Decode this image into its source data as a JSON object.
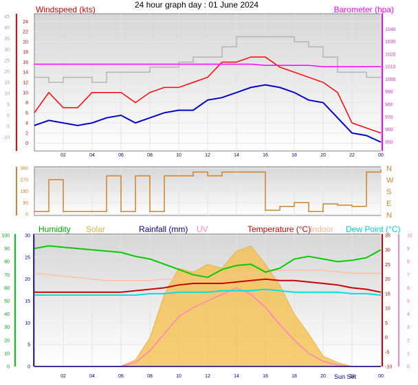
{
  "title": "24 hour graph day : 01 June 2024",
  "x_ticks": [
    "02",
    "04",
    "06",
    "08",
    "10",
    "12",
    "14",
    "16",
    "18",
    "20",
    "22",
    "00"
  ],
  "sun_label": "Sun Set",
  "colors": {
    "wind_avg": "#0000cc",
    "wind_gust": "#ff0000",
    "baro": "#ff00ff",
    "gust_max": "#b4b4b4",
    "direction": "#d2822a",
    "humidity": "#00cc00",
    "solar": "#f5c050",
    "rain": "#000080",
    "uv": "#ff80c0",
    "temperature": "#cc0000",
    "indoor": "#ffc0a0",
    "dewpoint": "#00e0e0",
    "axis_left": "#a0a0a0"
  },
  "chart_data": [
    {
      "type": "line",
      "title": "",
      "labels": {
        "left": "Windspeed (kts)",
        "right": "Barometer (hpa)"
      },
      "ylim_outer": [
        -15,
        45
      ],
      "yticks_outer": [
        45,
        40,
        35,
        30,
        25,
        20,
        15,
        10,
        5,
        0,
        -5,
        -10
      ],
      "ylim_wind": [
        -1,
        25
      ],
      "yticks_wind": [
        24,
        22,
        20,
        18,
        16,
        14,
        12,
        10,
        8,
        6,
        4,
        2,
        0
      ],
      "ylim_baro": [
        945,
        1050
      ],
      "yticks_baro": [
        1040,
        1030,
        1020,
        1010,
        1000,
        990,
        980,
        970,
        960,
        950
      ],
      "x": [
        0,
        1,
        2,
        3,
        4,
        5,
        6,
        7,
        8,
        9,
        10,
        11,
        12,
        13,
        14,
        15,
        16,
        17,
        18,
        19,
        20,
        21,
        22,
        23,
        24
      ],
      "series": [
        {
          "key": "wind_avg",
          "values": [
            3.5,
            4.5,
            4,
            3.5,
            4,
            5,
            5.5,
            4,
            5,
            6,
            6.5,
            6.5,
            8.5,
            9,
            10,
            11,
            11.5,
            11,
            10,
            8.5,
            8,
            5,
            2,
            1.5,
            0.2
          ]
        },
        {
          "key": "wind_gust",
          "values": [
            6,
            10,
            7,
            7,
            10,
            10,
            10,
            8,
            10,
            11,
            11,
            12,
            13,
            16,
            16,
            17,
            17,
            15,
            14,
            13,
            12,
            10,
            4,
            3,
            2
          ]
        },
        {
          "key": "gust_max",
          "values": [
            13,
            12,
            13,
            13,
            12,
            14,
            14,
            14,
            15,
            15,
            16,
            17,
            17,
            19,
            21,
            21,
            21,
            21,
            20,
            19,
            17,
            14,
            14,
            13,
            13
          ]
        },
        {
          "key": "baro",
          "values": [
            1012,
            1012,
            1012,
            1012,
            1012,
            1012,
            1012,
            1012,
            1012,
            1012,
            1012,
            1012,
            1012,
            1012,
            1012,
            1012,
            1011,
            1011,
            1011,
            1011,
            1010,
            1010,
            1010,
            1010,
            1010
          ]
        }
      ]
    },
    {
      "type": "line",
      "title": "",
      "labels": {
        "right": [
          "N",
          "W",
          "S",
          "E",
          "N"
        ]
      },
      "ylim": [
        0,
        360
      ],
      "yticks": [
        360,
        270,
        180,
        90,
        0
      ],
      "x": [
        0,
        1,
        2,
        3,
        4,
        5,
        6,
        7,
        8,
        9,
        10,
        11,
        12,
        13,
        14,
        15,
        16,
        17,
        18,
        19,
        20,
        21,
        22,
        23,
        24
      ],
      "series": [
        {
          "key": "direction",
          "values": [
            20,
            270,
            20,
            20,
            20,
            300,
            20,
            300,
            20,
            300,
            300,
            330,
            300,
            330,
            330,
            330,
            30,
            60,
            90,
            20,
            80,
            70,
            60,
            330,
            350
          ]
        }
      ]
    },
    {
      "type": "area",
      "title": "",
      "labels": {
        "humidity": "Humidity",
        "solar": "Solar",
        "rain": "Rainfall (mm)",
        "uv": "UV",
        "temperature": "Temperature (°C)",
        "indoor": "Indoor",
        "dewpoint": "Dew Point (°C)"
      },
      "ylim_humidity": [
        0,
        100
      ],
      "yticks_humidity": [
        100,
        90,
        80,
        70,
        60,
        50,
        40,
        30,
        20,
        10,
        0
      ],
      "ylim_rain": [
        0,
        30
      ],
      "yticks_rain": [
        30,
        25,
        20,
        15,
        10,
        5,
        0
      ],
      "ylim_temp": [
        -10,
        35
      ],
      "yticks_temp": [
        35,
        30,
        25,
        20,
        15,
        10,
        5,
        0,
        -5,
        -10
      ],
      "ylim_uv": [
        0,
        10
      ],
      "yticks_uv": [
        10,
        9,
        8,
        7,
        6,
        5,
        4,
        3,
        2,
        1,
        0
      ],
      "x": [
        0,
        1,
        2,
        3,
        4,
        5,
        6,
        7,
        8,
        9,
        10,
        11,
        12,
        13,
        14,
        15,
        16,
        17,
        18,
        19,
        20,
        21,
        22,
        23,
        24
      ],
      "series": [
        {
          "key": "humidity",
          "values": [
            90,
            92,
            91,
            90,
            89,
            88,
            87,
            84,
            82,
            78,
            74,
            70,
            68,
            74,
            77,
            78,
            72,
            75,
            82,
            84,
            82,
            80,
            81,
            83,
            89
          ]
        },
        {
          "key": "indoor",
          "values": [
            22,
            21.5,
            21,
            20.5,
            20,
            19.5,
            19.5,
            19.5,
            19.5,
            20,
            20,
            20.5,
            20.5,
            21,
            21.5,
            22,
            22.5,
            23,
            23,
            23,
            23,
            22.5,
            22,
            22,
            22
          ]
        },
        {
          "key": "temperature",
          "values": [
            15.5,
            15.5,
            15.5,
            15.5,
            15.5,
            15.5,
            15.5,
            16,
            16.5,
            17,
            18,
            18.5,
            18.5,
            18.5,
            19,
            19.5,
            20,
            19.5,
            19.5,
            19,
            18.5,
            18,
            17,
            16.5,
            15.5
          ]
        },
        {
          "key": "dewpoint",
          "values": [
            14.5,
            14.5,
            14.5,
            14.5,
            14.5,
            14.5,
            14.5,
            14.5,
            15,
            15,
            15.5,
            15.5,
            15.5,
            16,
            16,
            16,
            16.5,
            16,
            15.5,
            15.5,
            15.5,
            15.5,
            15,
            15,
            14.5
          ]
        },
        {
          "key": "solar",
          "values": [
            0,
            0,
            0,
            0,
            0,
            0,
            0.3,
            5,
            22,
            55,
            75,
            72,
            78,
            75,
            88,
            92,
            78,
            62,
            40,
            25,
            8,
            3,
            0,
            0,
            0
          ]
        },
        {
          "key": "uv",
          "values": [
            0,
            0,
            0,
            0,
            0,
            0,
            0,
            0.3,
            1.2,
            2.5,
            3.8,
            4.5,
            5,
            5.5,
            6,
            5.5,
            4.5,
            3.2,
            2,
            1,
            0.4,
            0.1,
            0,
            0,
            0
          ]
        },
        {
          "key": "rain",
          "values": [
            0,
            0,
            0,
            0,
            0,
            0,
            0,
            0,
            0,
            0,
            0,
            0,
            0,
            0,
            0,
            0,
            0,
            0,
            0,
            0,
            0,
            0,
            0,
            0,
            0
          ]
        }
      ]
    }
  ]
}
